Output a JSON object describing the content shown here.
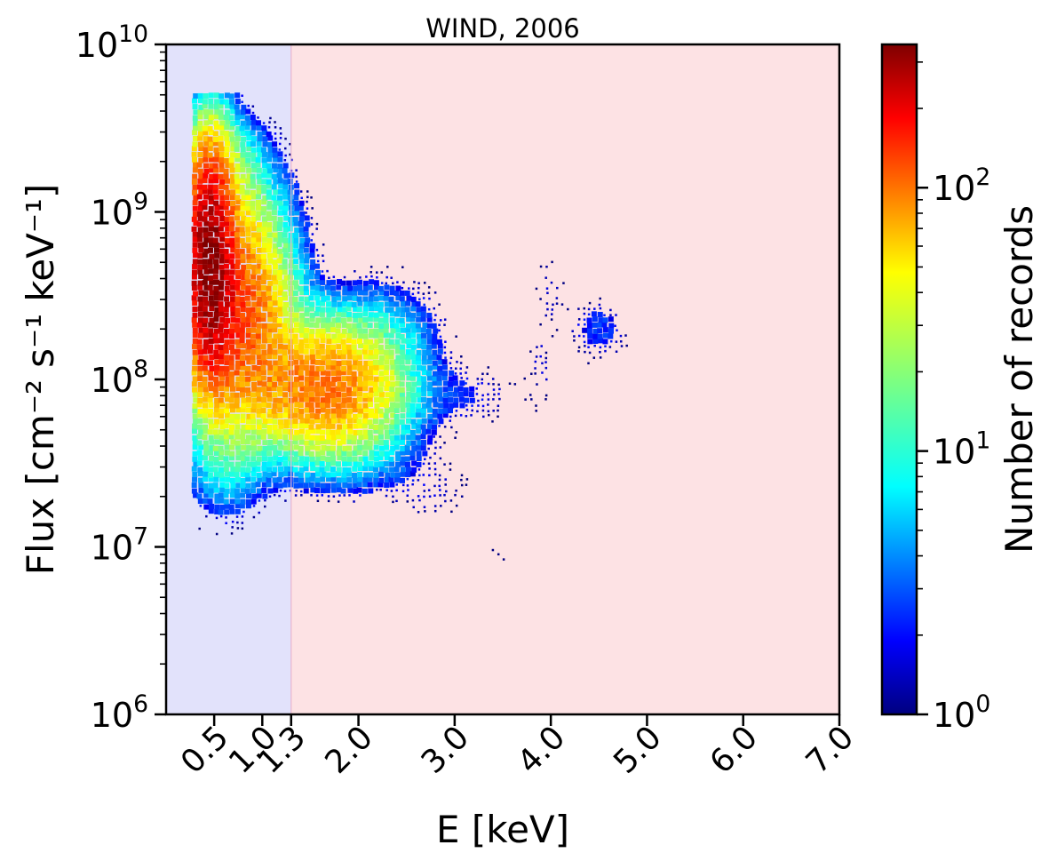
{
  "chart_data": {
    "type": "heatmap",
    "title": "WIND, 2006",
    "xlabel": "E [keV]",
    "ylabel": "Flux [cm⁻² s⁻¹ keV⁻¹]",
    "colorbar_label": "Number of records",
    "x_scale": "linear",
    "y_scale": "log",
    "xlim": [
      0.0,
      7.0
    ],
    "ylim": [
      1000000,
      10000000000
    ],
    "x_ticks": [
      0.5,
      1.0,
      1.3,
      2.0,
      3.0,
      4.0,
      5.0,
      6.0,
      7.0
    ],
    "x_tick_labels": [
      "0.5",
      "1.0",
      "1.3",
      "2.0",
      "3.0",
      "4.0",
      "5.0",
      "6.0",
      "7.0"
    ],
    "y_ticks": [
      1000000,
      10000000,
      100000000,
      1000000000,
      10000000000
    ],
    "y_tick_labels": [
      {
        "base": "10",
        "exp": "6"
      },
      {
        "base": "10",
        "exp": "7"
      },
      {
        "base": "10",
        "exp": "8"
      },
      {
        "base": "10",
        "exp": "9"
      },
      {
        "base": "10",
        "exp": "10"
      }
    ],
    "colorbar": {
      "scale": "log",
      "colormap": "jet",
      "range": [
        1,
        350
      ],
      "ticks": [
        1,
        10,
        100
      ],
      "tick_labels": [
        {
          "base": "10",
          "exp": "0"
        },
        {
          "base": "10",
          "exp": "1"
        },
        {
          "base": "10",
          "exp": "2"
        }
      ]
    },
    "shaded_regions": [
      {
        "x_range": [
          0.0,
          1.3
        ],
        "color": "#e2e2fb"
      },
      {
        "x_range": [
          1.3,
          7.0
        ],
        "color": "#fde2e4"
      }
    ],
    "divider_x": 1.3,
    "grid": false,
    "density_clusters": [
      {
        "x": 0.45,
        "y": 500000000,
        "sx": 0.14,
        "sy": 0.38,
        "peak": 320
      },
      {
        "x": 0.75,
        "y": 250000000,
        "sx": 0.3,
        "sy": 0.38,
        "peak": 110
      },
      {
        "x": 1.65,
        "y": 90000000,
        "sx": 0.45,
        "sy": 0.22,
        "peak": 90
      },
      {
        "x": 0.6,
        "y": 1500000000,
        "sx": 0.25,
        "sy": 0.22,
        "peak": 18
      },
      {
        "x": 2.3,
        "y": 200000000,
        "sx": 0.35,
        "sy": 0.2,
        "peak": 4
      },
      {
        "x": 0.6,
        "y": 30000000,
        "sx": 0.22,
        "sy": 0.18,
        "peak": 6
      },
      {
        "x": 2.0,
        "y": 35000000,
        "sx": 0.4,
        "sy": 0.15,
        "peak": 3
      },
      {
        "x": 3.2,
        "y": 80000000,
        "sx": 0.35,
        "sy": 0.12,
        "peak": 2
      },
      {
        "x": 2.8,
        "y": 20000000,
        "sx": 0.3,
        "sy": 0.15,
        "peak": 1.5
      },
      {
        "x": 4.0,
        "y": 350000000,
        "sx": 0.12,
        "sy": 0.15,
        "peak": 1.5
      },
      {
        "x": 4.5,
        "y": 200000000,
        "sx": 0.2,
        "sy": 0.12,
        "peak": 3
      },
      {
        "x": 3.9,
        "y": 120000000,
        "sx": 0.1,
        "sy": 0.2,
        "peak": 1.5
      },
      {
        "x": 3.5,
        "y": 9000000,
        "sx": 0.15,
        "sy": 0.08,
        "peak": 1
      }
    ]
  }
}
